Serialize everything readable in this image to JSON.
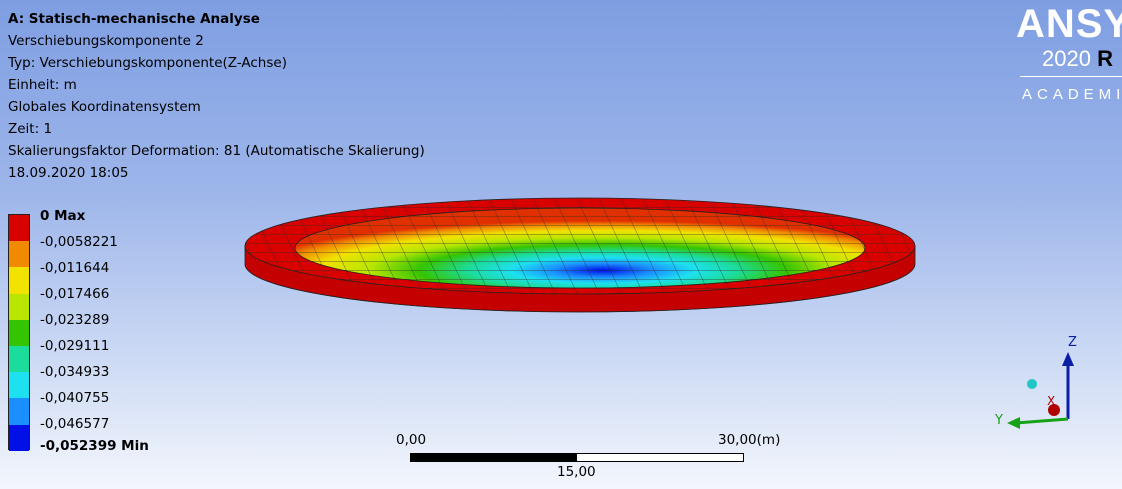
{
  "header": {
    "title": "A: Statisch-mechanische Analyse",
    "lines": [
      "Verschiebungskomponente 2",
      "Typ: Verschiebungskomponente(Z-Achse)",
      "Einheit: m",
      "Globales Koordinatensystem",
      "Zeit: 1",
      "Skalierungsfaktor Deformation: 81 (Automatische Skalierung)",
      "18.09.2020 18:05"
    ]
  },
  "logo": {
    "brand": "ANSYS",
    "version": "2020",
    "release": "R",
    "edition": "ACADEMI"
  },
  "legend": {
    "max_label": "0 Max",
    "min_label": "-0,052399 Min",
    "values": [
      "-0,0058221",
      "-0,011644",
      "-0,017466",
      "-0,023289",
      "-0,029111",
      "-0,034933",
      "-0,040755",
      "-0,046577"
    ],
    "colors": [
      "#d90000",
      "#f08a00",
      "#f2e200",
      "#b8e600",
      "#35c400",
      "#1cdc9c",
      "#1de0f0",
      "#1b8fff",
      "#0010e6"
    ]
  },
  "scale_bar": {
    "left": "0,00",
    "right": "30,00",
    "unit": "(m)",
    "mid": "15,00"
  },
  "triad": {
    "z": "Z",
    "y": "Y",
    "x": "X"
  }
}
